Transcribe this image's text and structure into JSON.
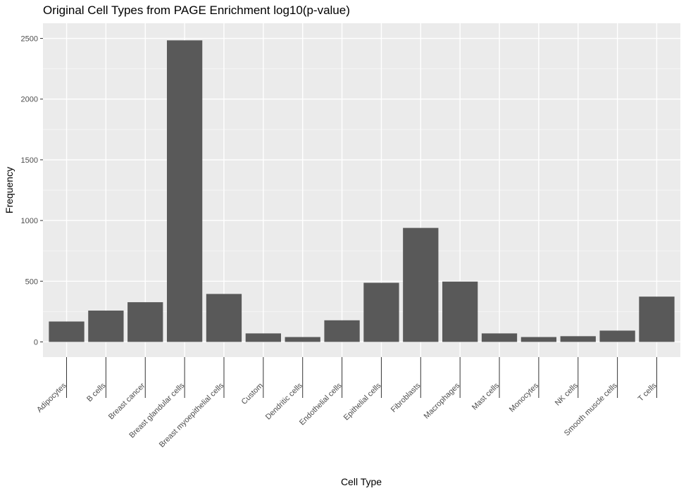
{
  "chart_data": {
    "type": "bar",
    "title": "Original Cell Types from PAGE Enrichment log10(p-value)",
    "xlabel": "Cell Type",
    "ylabel": "Frequency",
    "categories": [
      "Adipocytes",
      "B cells",
      "Breast cancer",
      "Breast glandular cells",
      "Breast myoepithelial cells",
      "Custom",
      "Dendritic cells",
      "Endothelial cells",
      "Epithelial cells",
      "Fibroblasts",
      "Macrophages",
      "Mast cells",
      "Monocytes",
      "NK cells",
      "Smooth muscle cells",
      "T cells"
    ],
    "values": [
      168,
      258,
      327,
      2484,
      395,
      70,
      40,
      178,
      487,
      939,
      497,
      70,
      40,
      47,
      93,
      373
    ],
    "ylim": [
      -125,
      2625
    ],
    "yticks": [
      0,
      500,
      1000,
      1500,
      2000,
      2500
    ],
    "grid": true,
    "legend": "none",
    "colors": {
      "bar": "#595959",
      "panel": "#ebebeb",
      "grid_major": "#ffffff",
      "grid_minor": "#f5f5f5",
      "tick_mark": "#333333",
      "tick_text": "#4d4d4d"
    }
  }
}
